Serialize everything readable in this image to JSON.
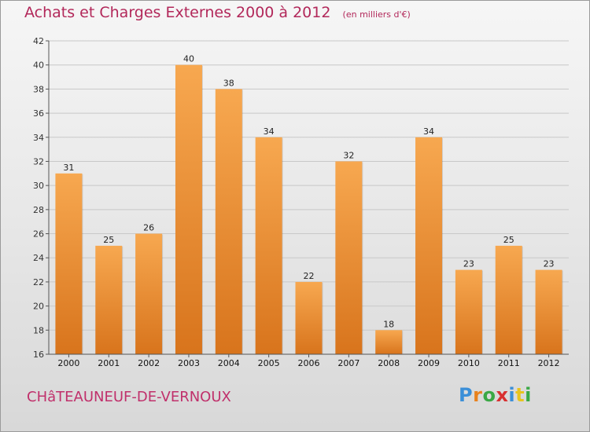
{
  "header": {
    "title": "Achats et Charges Externes 2000 à 2012",
    "subtitle": "(en milliers d'€)"
  },
  "footer": {
    "place": "CHâTEAUNEUF-DE-VERNOUX",
    "brand": "Proxiti",
    "brand_letters": [
      "P",
      "r",
      "o",
      "x",
      "i",
      "t",
      "i"
    ],
    "brand_colors": [
      "#3b8fd8",
      "#e8821e",
      "#3aa845",
      "#d83030",
      "#3b8fd8",
      "#e8c41e",
      "#3aa845"
    ]
  },
  "colors": {
    "bar_light": "#f7a850",
    "bar_dark": "#d8741c",
    "grid": "#c8c8c8",
    "axis": "#555555"
  },
  "chart_data": {
    "type": "bar",
    "categories": [
      "2000",
      "2001",
      "2002",
      "2003",
      "2004",
      "2005",
      "2006",
      "2007",
      "2008",
      "2009",
      "2010",
      "2011",
      "2012"
    ],
    "values": [
      31,
      25,
      26,
      40,
      38,
      34,
      22,
      32,
      18,
      34,
      23,
      25,
      23
    ],
    "data_labels": [
      "31",
      "25",
      "26",
      "40",
      "38",
      "34",
      "22",
      "32",
      "18",
      "34",
      "23",
      "25",
      "23"
    ],
    "ylim": [
      16,
      42
    ],
    "yticks": [
      16,
      18,
      20,
      22,
      24,
      26,
      28,
      30,
      32,
      34,
      36,
      38,
      40,
      42
    ],
    "grid": true,
    "xlabel": "",
    "ylabel": ""
  }
}
